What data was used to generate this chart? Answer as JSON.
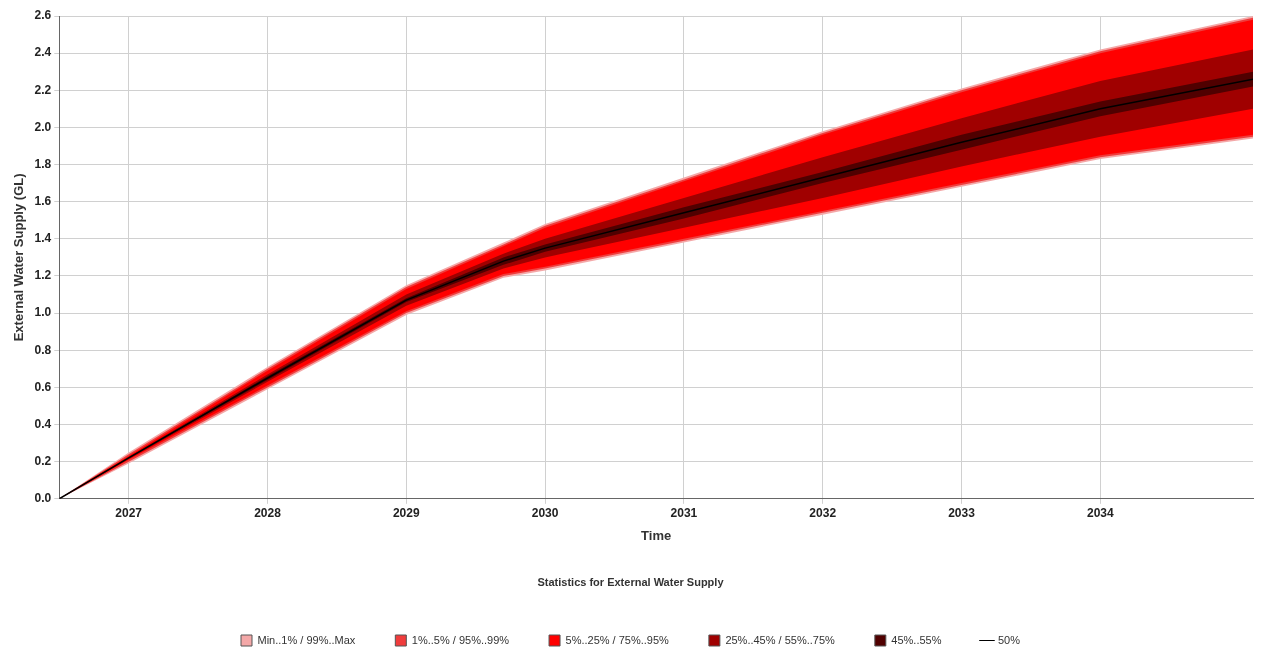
{
  "chart_data": {
    "type": "line",
    "xlabel": "Time",
    "ylabel": "External Water Supply (GL)",
    "legend_title": "Statistics for External Water Supply",
    "x": [
      2026.5,
      2027,
      2028,
      2029,
      2029.7,
      2030,
      2031,
      2032,
      2033,
      2034,
      2035.1
    ],
    "series": [
      {
        "name": "Min..1% / 99%..Max",
        "color": "#f4a8a8",
        "values": [
          null,
          null,
          null,
          null,
          null,
          null,
          null,
          null,
          null,
          null,
          null
        ],
        "upper": [
          0,
          0.25,
          0.71,
          1.15,
          1.38,
          1.48,
          1.73,
          1.98,
          2.21,
          2.42,
          2.6
        ],
        "lower": [
          0,
          0.19,
          0.59,
          0.99,
          1.19,
          1.23,
          1.38,
          1.53,
          1.68,
          1.83,
          1.94
        ]
      },
      {
        "name": "1%..5% / 95%..99%",
        "color": "#f03c3c",
        "values": [
          null,
          null,
          null,
          null,
          null,
          null,
          null,
          null,
          null,
          null,
          null
        ],
        "upper": [
          0,
          0.24,
          0.7,
          1.14,
          1.37,
          1.47,
          1.72,
          1.97,
          2.2,
          2.41,
          2.59
        ],
        "lower": [
          0,
          0.2,
          0.6,
          1.0,
          1.2,
          1.24,
          1.39,
          1.54,
          1.69,
          1.84,
          1.95
        ]
      },
      {
        "name": "5%..25% / 75%..95%",
        "color": "#ff0000",
        "values": [
          null,
          null,
          null,
          null,
          null,
          null,
          null,
          null,
          null,
          null,
          null
        ],
        "upper": [
          0,
          0.23,
          0.69,
          1.13,
          1.36,
          1.46,
          1.71,
          1.96,
          2.19,
          2.4,
          2.58
        ],
        "lower": [
          0,
          0.21,
          0.61,
          1.01,
          1.21,
          1.25,
          1.4,
          1.55,
          1.7,
          1.85,
          1.96
        ]
      },
      {
        "name": "25%..45% / 55%..75%",
        "color": "#a00000",
        "values": [
          null,
          null,
          null,
          null,
          null,
          null,
          null,
          null,
          null,
          null,
          null
        ],
        "upper": [
          0,
          0.225,
          0.67,
          1.1,
          1.32,
          1.4,
          1.62,
          1.84,
          2.05,
          2.25,
          2.42
        ],
        "lower": [
          0,
          0.215,
          0.63,
          1.04,
          1.24,
          1.3,
          1.46,
          1.62,
          1.79,
          1.95,
          2.1
        ]
      },
      {
        "name": "45%..55%",
        "color": "#500000",
        "values": [
          null,
          null,
          null,
          null,
          null,
          null,
          null,
          null,
          null,
          null,
          null
        ],
        "upper": [
          0,
          0.22,
          0.66,
          1.08,
          1.3,
          1.37,
          1.57,
          1.76,
          1.96,
          2.14,
          2.3
        ],
        "lower": [
          0,
          0.22,
          0.64,
          1.06,
          1.26,
          1.33,
          1.51,
          1.7,
          1.88,
          2.06,
          2.22
        ]
      },
      {
        "name": "50%",
        "color": "#000000",
        "values": [
          0,
          0.22,
          0.65,
          1.07,
          1.28,
          1.35,
          1.54,
          1.73,
          1.92,
          2.1,
          2.26
        ]
      }
    ],
    "xlim": [
      2026.5,
      2035.1
    ],
    "xticks": [
      2027,
      2028,
      2029,
      2030,
      2031,
      2032,
      2033,
      2034
    ],
    "ylim": [
      0,
      2.6
    ],
    "yticks": [
      {
        "value": 0,
        "label": "0.0"
      },
      {
        "value": 0.2,
        "label": "0.2"
      },
      {
        "value": 0.4,
        "label": "0.4"
      },
      {
        "value": 0.6,
        "label": "0.6"
      },
      {
        "value": 0.8,
        "label": "0.8"
      },
      {
        "value": 1.0,
        "label": "1.0"
      },
      {
        "value": 1.2,
        "label": "1.2"
      },
      {
        "value": 1.4,
        "label": "1.4"
      },
      {
        "value": 1.6,
        "label": "1.6"
      },
      {
        "value": 1.8,
        "label": "1.8"
      },
      {
        "value": 2.0,
        "label": "2.0"
      },
      {
        "value": 2.2,
        "label": "2.2"
      },
      {
        "value": 2.4,
        "label": "2.4"
      },
      {
        "value": 2.6,
        "label": "2.6"
      }
    ],
    "grid": true,
    "legend": "bottom",
    "marker": "none"
  }
}
